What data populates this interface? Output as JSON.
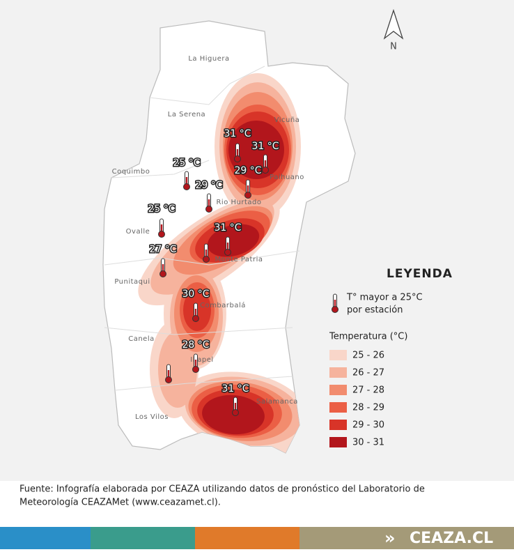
{
  "compass": "N",
  "places": [
    "La Higuera",
    "La Serena",
    "Vicuña",
    "Coquimbo",
    "Paihuano",
    "Rio Hurtado",
    "Ovalle",
    "Monte Patria",
    "Punitaqui",
    "Combarbalá",
    "Canela",
    "Illapel",
    "Salamanca",
    "Los Vilos"
  ],
  "stations": [
    "31 °C",
    "31 °C",
    "29 °C",
    "25 °C",
    "29 °C",
    "25 °C",
    "31 °C",
    "27 °C",
    "30 °C",
    "28 °C",
    "31 °C"
  ],
  "legend": {
    "title": "LEYENDA",
    "icon_text": [
      "T° mayor a 25°C",
      "por estación"
    ],
    "scale_title": "Temperatura (°C)",
    "items": [
      {
        "label": "25 - 26",
        "color": "#f9d6c9"
      },
      {
        "label": "26 - 27",
        "color": "#f6b39d"
      },
      {
        "label": "27 - 28",
        "color": "#f28c6e"
      },
      {
        "label": "28 - 29",
        "color": "#eb5f45"
      },
      {
        "label": "29 - 30",
        "color": "#d83428"
      },
      {
        "label": "30 - 31",
        "color": "#b2161c"
      }
    ]
  },
  "footer": [
    "Fuente: Infografía elaborada por CEAZA utilizando datos de pronóstico del Laboratorio de",
    "Meteorología CEAZAMet (www.ceazamet.cl)."
  ],
  "brand": {
    "arrow": "»",
    "name": "CEAZA.CL"
  }
}
